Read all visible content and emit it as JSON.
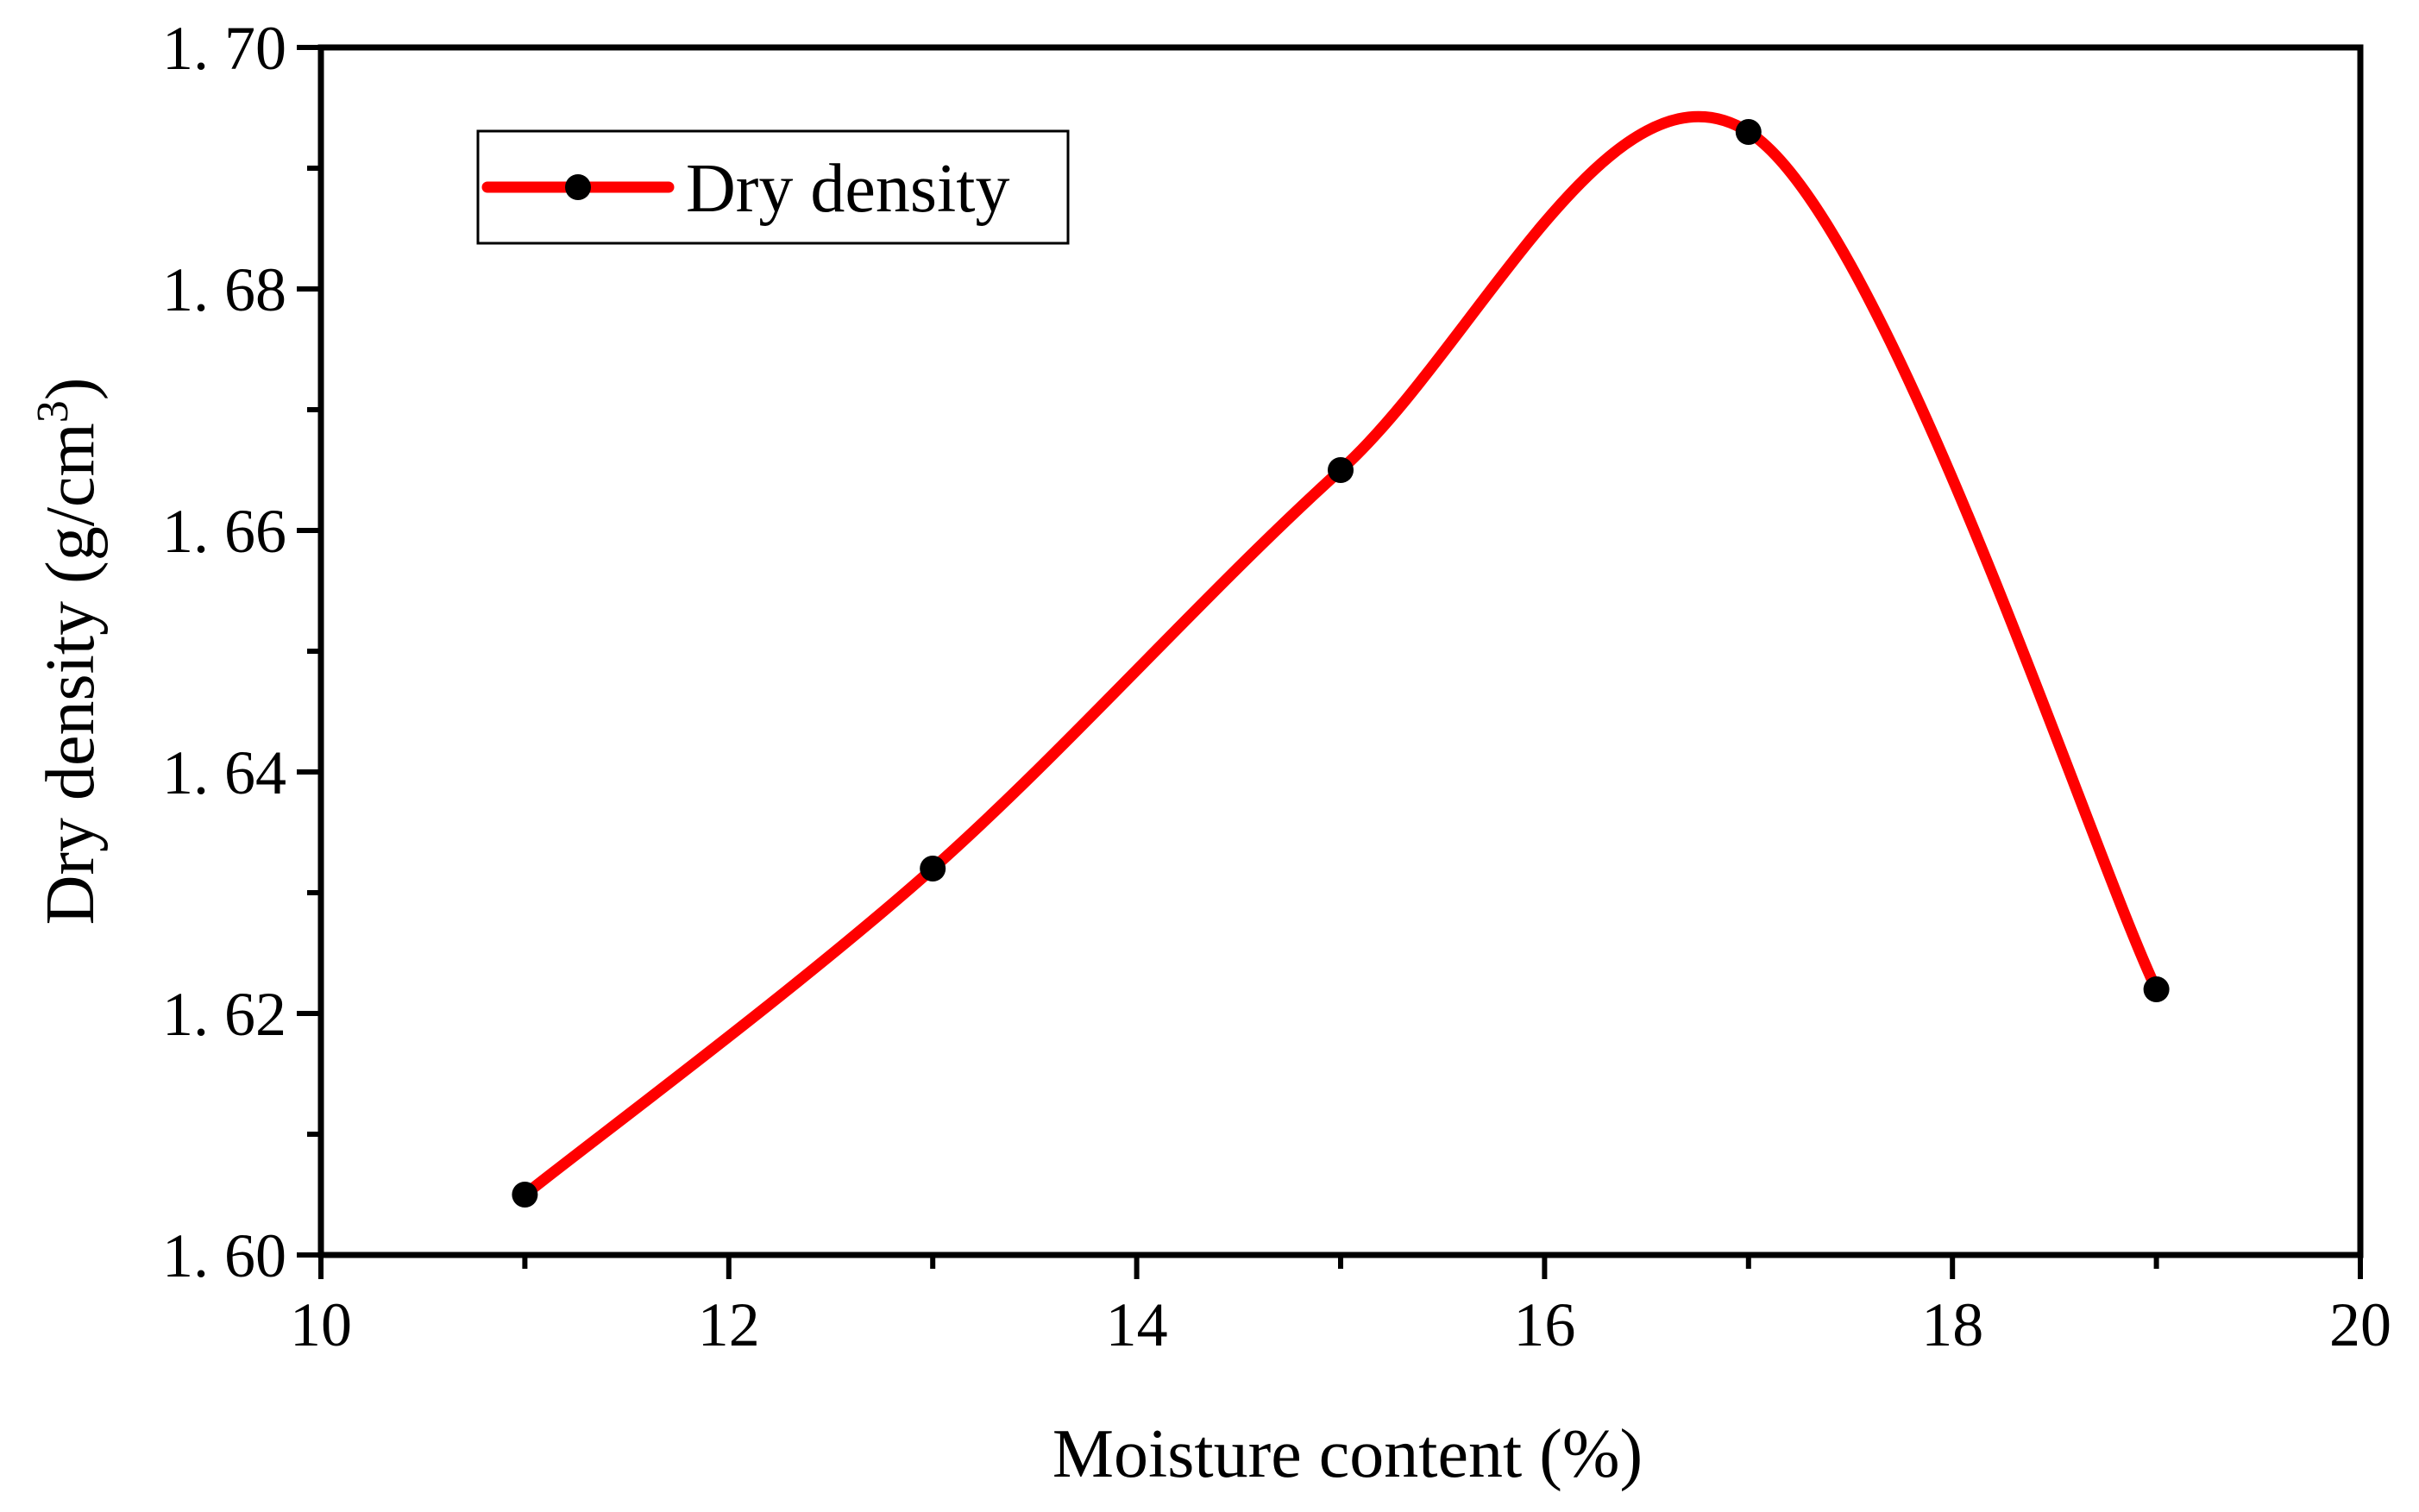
{
  "chart_data": {
    "type": "line",
    "title": "",
    "xlabel": "Moisture content (%)",
    "ylabel": "Dry density (g/cm",
    "ylabel_superscript": "3",
    "ylabel_close": ")",
    "xlim": [
      10,
      20
    ],
    "ylim": [
      1.6,
      1.7
    ],
    "xticks": [
      10,
      12,
      14,
      16,
      18,
      20
    ],
    "xtick_labels": [
      "10",
      "12",
      "14",
      "16",
      "18",
      "20"
    ],
    "yticks": [
      1.6,
      1.62,
      1.64,
      1.66,
      1.68,
      1.7
    ],
    "ytick_labels": [
      "1. 60",
      "1. 62",
      "1. 64",
      "1. 66",
      "1. 68",
      "1. 70"
    ],
    "grid": false,
    "legend_position": "top-left",
    "series": [
      {
        "name": "Dry density",
        "color": "#ff0000",
        "marker_color": "#000000",
        "smooth": true,
        "x": [
          11,
          13,
          15,
          17,
          19
        ],
        "y": [
          1.605,
          1.632,
          1.665,
          1.693,
          1.622
        ]
      }
    ]
  }
}
